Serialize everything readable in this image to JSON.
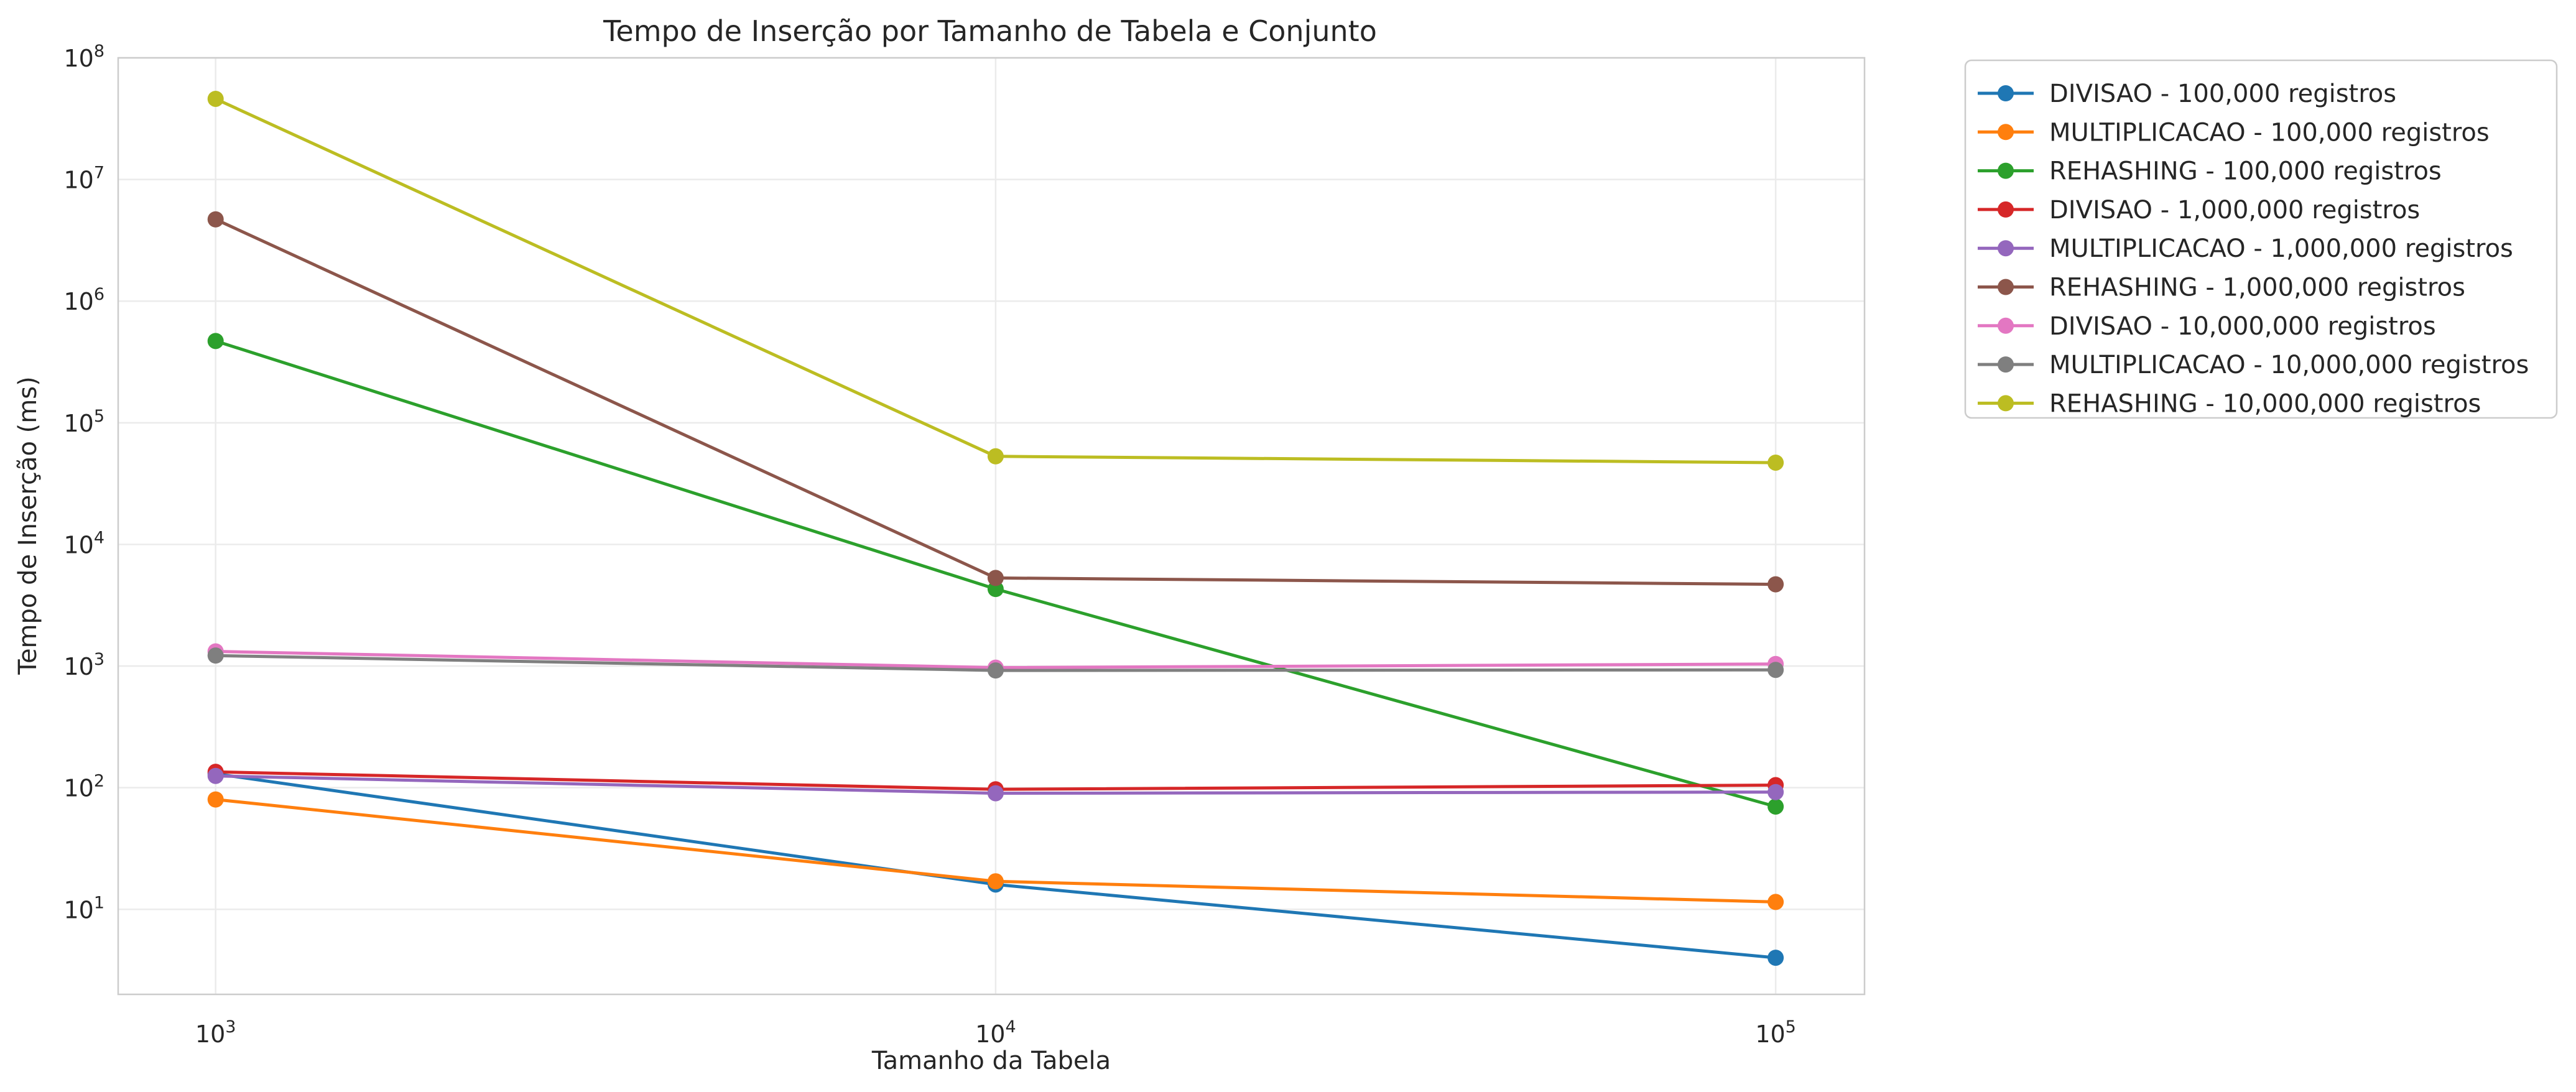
{
  "chart_data": {
    "type": "line",
    "title": "Tempo de Inserção por Tamanho de Tabela e Conjunto",
    "xlabel": "Tamanho da Tabela",
    "ylabel": "Tempo de Inserção (ms)",
    "x_scale": "log",
    "y_scale": "log",
    "x": [
      1000,
      10000,
      100000
    ],
    "xlim": [
      750,
      130000
    ],
    "ylim": [
      2,
      100000000
    ],
    "x_ticks": [
      {
        "base": "10",
        "exp": "3",
        "value": 1000
      },
      {
        "base": "10",
        "exp": "4",
        "value": 10000
      },
      {
        "base": "10",
        "exp": "5",
        "value": 100000
      }
    ],
    "y_ticks": [
      {
        "base": "10",
        "exp": "1",
        "value": 10
      },
      {
        "base": "10",
        "exp": "2",
        "value": 100
      },
      {
        "base": "10",
        "exp": "3",
        "value": 1000
      },
      {
        "base": "10",
        "exp": "4",
        "value": 10000
      },
      {
        "base": "10",
        "exp": "5",
        "value": 100000
      },
      {
        "base": "10",
        "exp": "6",
        "value": 1000000
      },
      {
        "base": "10",
        "exp": "7",
        "value": 10000000
      },
      {
        "base": "10",
        "exp": "8",
        "value": 100000000
      }
    ],
    "grid": true,
    "legend_position": "outside-top-right",
    "series": [
      {
        "name": "DIVISAO - 100,000 registros",
        "color": "#1f77b4",
        "values": [
          130,
          16,
          4
        ]
      },
      {
        "name": "MULTIPLICACAO - 100,000 registros",
        "color": "#ff7f0e",
        "values": [
          80,
          17,
          11.5
        ]
      },
      {
        "name": "REHASHING - 100,000 registros",
        "color": "#2ca02c",
        "values": [
          470000,
          4300,
          70
        ]
      },
      {
        "name": "DIVISAO - 1,000,000 registros",
        "color": "#d62728",
        "values": [
          135,
          97,
          105
        ]
      },
      {
        "name": "MULTIPLICACAO - 1,000,000 registros",
        "color": "#9467bd",
        "values": [
          125,
          90,
          92
        ]
      },
      {
        "name": "REHASHING - 1,000,000 registros",
        "color": "#8c564b",
        "values": [
          4700000,
          5300,
          4700
        ]
      },
      {
        "name": "DIVISAO - 10,000,000 registros",
        "color": "#e377c2",
        "values": [
          1320,
          970,
          1040
        ]
      },
      {
        "name": "MULTIPLICACAO - 10,000,000 registros",
        "color": "#7f7f7f",
        "values": [
          1220,
          920,
          930
        ]
      },
      {
        "name": "REHASHING - 10,000,000 registros",
        "color": "#bcbd22",
        "values": [
          46000000,
          53000,
          47000
        ]
      }
    ]
  }
}
